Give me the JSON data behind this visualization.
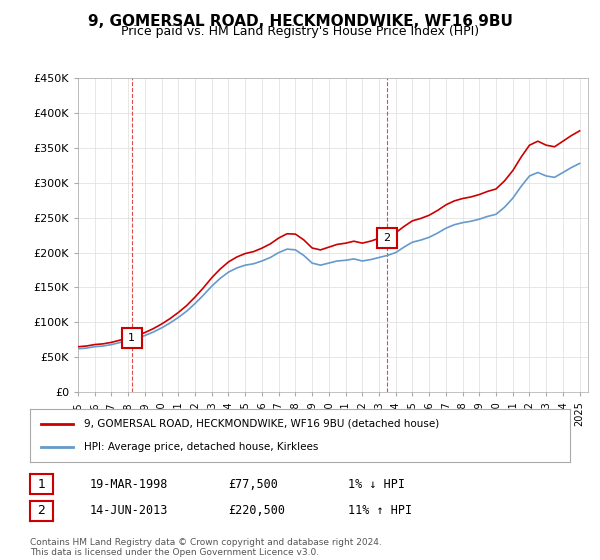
{
  "title": "9, GOMERSAL ROAD, HECKMONDWIKE, WF16 9BU",
  "subtitle": "Price paid vs. HM Land Registry's House Price Index (HPI)",
  "ylabel_ticks": [
    "£0",
    "£50K",
    "£100K",
    "£150K",
    "£200K",
    "£250K",
    "£300K",
    "£350K",
    "£400K",
    "£450K"
  ],
  "ylim": [
    0,
    450000
  ],
  "xlim_start": 1995.0,
  "xlim_end": 2025.5,
  "hpi_color": "#6699cc",
  "price_color": "#cc0000",
  "marker1_x": 1998.2,
  "marker1_y": 77500,
  "marker1_label": "1",
  "marker2_x": 2013.45,
  "marker2_y": 220500,
  "marker2_label": "2",
  "legend_line1": "9, GOMERSAL ROAD, HECKMONDWIKE, WF16 9BU (detached house)",
  "legend_line2": "HPI: Average price, detached house, Kirklees",
  "table_row1": [
    "1",
    "19-MAR-1998",
    "£77,500",
    "1% ↓ HPI"
  ],
  "table_row2": [
    "2",
    "14-JUN-2013",
    "£220,500",
    "11% ↑ HPI"
  ],
  "footer": "Contains HM Land Registry data © Crown copyright and database right 2024.\nThis data is licensed under the Open Government Licence v3.0.",
  "background_color": "#ffffff",
  "grid_color": "#dddddd"
}
